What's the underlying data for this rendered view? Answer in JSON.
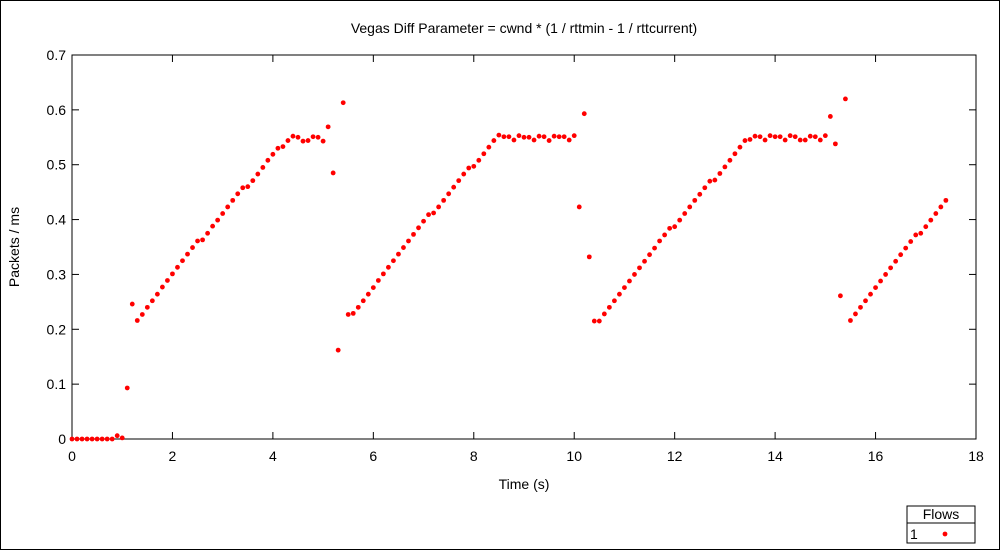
{
  "chart_data": {
    "type": "scatter",
    "title": "Vegas Diff Parameter = cwnd * (1 / rttmin - 1 / rttcurrent)",
    "xlabel": "Time (s)",
    "ylabel": "Packets / ms",
    "xlim": [
      0,
      18
    ],
    "ylim": [
      0,
      0.7
    ],
    "xticks": [
      0,
      2,
      4,
      6,
      8,
      10,
      12,
      14,
      16,
      18
    ],
    "yticks": [
      0,
      0.1,
      0.2,
      0.3,
      0.4,
      0.5,
      0.6,
      0.7
    ],
    "xtick_labels": [
      "0",
      "2",
      "4",
      "6",
      "8",
      "10",
      "12",
      "14",
      "16",
      "18"
    ],
    "ytick_labels": [
      "0",
      "0.1",
      "0.2",
      "0.3",
      "0.4",
      "0.5",
      "0.6",
      "0.7"
    ],
    "grid": false,
    "legend_placement": "bottom-right",
    "legend_title": "Flows",
    "series": [
      {
        "name": "1",
        "color": "#ff0000",
        "marker": "dot",
        "points": [
          [
            0.0,
            0.0
          ],
          [
            0.1,
            0.0
          ],
          [
            0.2,
            0.0
          ],
          [
            0.3,
            0.0
          ],
          [
            0.4,
            0.0
          ],
          [
            0.5,
            0.0
          ],
          [
            0.6,
            0.0
          ],
          [
            0.7,
            0.0
          ],
          [
            0.8,
            0.0
          ],
          [
            0.9,
            0.006
          ],
          [
            1.0,
            0.002
          ],
          [
            1.1,
            0.093
          ],
          [
            1.2,
            0.246
          ],
          [
            1.3,
            0.216
          ],
          [
            1.4,
            0.227
          ],
          [
            1.5,
            0.24
          ],
          [
            1.6,
            0.252
          ],
          [
            1.7,
            0.264
          ],
          [
            1.8,
            0.277
          ],
          [
            1.9,
            0.289
          ],
          [
            2.0,
            0.301
          ],
          [
            2.1,
            0.313
          ],
          [
            2.2,
            0.325
          ],
          [
            2.3,
            0.337
          ],
          [
            2.4,
            0.349
          ],
          [
            2.5,
            0.361
          ],
          [
            2.6,
            0.363
          ],
          [
            2.7,
            0.375
          ],
          [
            2.8,
            0.388
          ],
          [
            2.9,
            0.399
          ],
          [
            3.0,
            0.411
          ],
          [
            3.1,
            0.423
          ],
          [
            3.2,
            0.435
          ],
          [
            3.3,
            0.447
          ],
          [
            3.4,
            0.458
          ],
          [
            3.5,
            0.46
          ],
          [
            3.6,
            0.471
          ],
          [
            3.7,
            0.483
          ],
          [
            3.8,
            0.495
          ],
          [
            3.9,
            0.508
          ],
          [
            4.0,
            0.519
          ],
          [
            4.1,
            0.53
          ],
          [
            4.2,
            0.533
          ],
          [
            4.3,
            0.544
          ],
          [
            4.4,
            0.552
          ],
          [
            4.5,
            0.55
          ],
          [
            4.6,
            0.543
          ],
          [
            4.7,
            0.544
          ],
          [
            4.8,
            0.551
          ],
          [
            4.9,
            0.55
          ],
          [
            5.0,
            0.543
          ],
          [
            5.1,
            0.569
          ],
          [
            5.2,
            0.485
          ],
          [
            5.3,
            0.162
          ],
          [
            5.4,
            0.613
          ],
          [
            5.5,
            0.227
          ],
          [
            5.6,
            0.229
          ],
          [
            5.7,
            0.24
          ],
          [
            5.8,
            0.252
          ],
          [
            5.9,
            0.264
          ],
          [
            6.0,
            0.276
          ],
          [
            6.1,
            0.289
          ],
          [
            6.2,
            0.301
          ],
          [
            6.3,
            0.313
          ],
          [
            6.4,
            0.325
          ],
          [
            6.5,
            0.337
          ],
          [
            6.6,
            0.349
          ],
          [
            6.7,
            0.361
          ],
          [
            6.8,
            0.373
          ],
          [
            6.9,
            0.385
          ],
          [
            7.0,
            0.397
          ],
          [
            7.1,
            0.409
          ],
          [
            7.2,
            0.412
          ],
          [
            7.3,
            0.423
          ],
          [
            7.4,
            0.435
          ],
          [
            7.5,
            0.447
          ],
          [
            7.6,
            0.459
          ],
          [
            7.7,
            0.471
          ],
          [
            7.8,
            0.483
          ],
          [
            7.9,
            0.494
          ],
          [
            8.0,
            0.497
          ],
          [
            8.1,
            0.508
          ],
          [
            8.2,
            0.52
          ],
          [
            8.3,
            0.532
          ],
          [
            8.4,
            0.544
          ],
          [
            8.5,
            0.554
          ],
          [
            8.6,
            0.551
          ],
          [
            8.7,
            0.551
          ],
          [
            8.8,
            0.545
          ],
          [
            8.9,
            0.553
          ],
          [
            9.0,
            0.55
          ],
          [
            9.1,
            0.55
          ],
          [
            9.2,
            0.545
          ],
          [
            9.3,
            0.552
          ],
          [
            9.4,
            0.551
          ],
          [
            9.5,
            0.544
          ],
          [
            9.6,
            0.552
          ],
          [
            9.7,
            0.551
          ],
          [
            9.8,
            0.551
          ],
          [
            9.9,
            0.545
          ],
          [
            10.0,
            0.553
          ],
          [
            10.1,
            0.423
          ],
          [
            10.2,
            0.593
          ],
          [
            10.3,
            0.332
          ],
          [
            10.4,
            0.215
          ],
          [
            10.5,
            0.215
          ],
          [
            10.6,
            0.228
          ],
          [
            10.7,
            0.24
          ],
          [
            10.8,
            0.252
          ],
          [
            10.9,
            0.264
          ],
          [
            11.0,
            0.276
          ],
          [
            11.1,
            0.288
          ],
          [
            11.2,
            0.3
          ],
          [
            11.3,
            0.312
          ],
          [
            11.4,
            0.324
          ],
          [
            11.5,
            0.336
          ],
          [
            11.6,
            0.348
          ],
          [
            11.7,
            0.361
          ],
          [
            11.8,
            0.372
          ],
          [
            11.9,
            0.384
          ],
          [
            12.0,
            0.387
          ],
          [
            12.1,
            0.399
          ],
          [
            12.2,
            0.411
          ],
          [
            12.3,
            0.423
          ],
          [
            12.4,
            0.435
          ],
          [
            12.5,
            0.446
          ],
          [
            12.6,
            0.458
          ],
          [
            12.7,
            0.47
          ],
          [
            12.8,
            0.472
          ],
          [
            12.9,
            0.484
          ],
          [
            13.0,
            0.496
          ],
          [
            13.1,
            0.508
          ],
          [
            13.2,
            0.52
          ],
          [
            13.3,
            0.532
          ],
          [
            13.4,
            0.544
          ],
          [
            13.5,
            0.546
          ],
          [
            13.6,
            0.552
          ],
          [
            13.7,
            0.551
          ],
          [
            13.8,
            0.545
          ],
          [
            13.9,
            0.553
          ],
          [
            14.0,
            0.551
          ],
          [
            14.1,
            0.551
          ],
          [
            14.2,
            0.545
          ],
          [
            14.3,
            0.553
          ],
          [
            14.4,
            0.551
          ],
          [
            14.5,
            0.545
          ],
          [
            14.6,
            0.545
          ],
          [
            14.7,
            0.552
          ],
          [
            14.8,
            0.551
          ],
          [
            14.9,
            0.545
          ],
          [
            15.0,
            0.553
          ],
          [
            15.1,
            0.588
          ],
          [
            15.2,
            0.538
          ],
          [
            15.3,
            0.261
          ],
          [
            15.4,
            0.62
          ],
          [
            15.5,
            0.216
          ],
          [
            15.6,
            0.228
          ],
          [
            15.7,
            0.24
          ],
          [
            15.8,
            0.252
          ],
          [
            15.9,
            0.264
          ],
          [
            16.0,
            0.276
          ],
          [
            16.1,
            0.288
          ],
          [
            16.2,
            0.3
          ],
          [
            16.3,
            0.312
          ],
          [
            16.4,
            0.324
          ],
          [
            16.5,
            0.336
          ],
          [
            16.6,
            0.348
          ],
          [
            16.7,
            0.36
          ],
          [
            16.8,
            0.372
          ],
          [
            16.9,
            0.375
          ],
          [
            17.0,
            0.387
          ],
          [
            17.1,
            0.399
          ],
          [
            17.2,
            0.411
          ],
          [
            17.3,
            0.423
          ],
          [
            17.4,
            0.435
          ]
        ]
      }
    ]
  }
}
